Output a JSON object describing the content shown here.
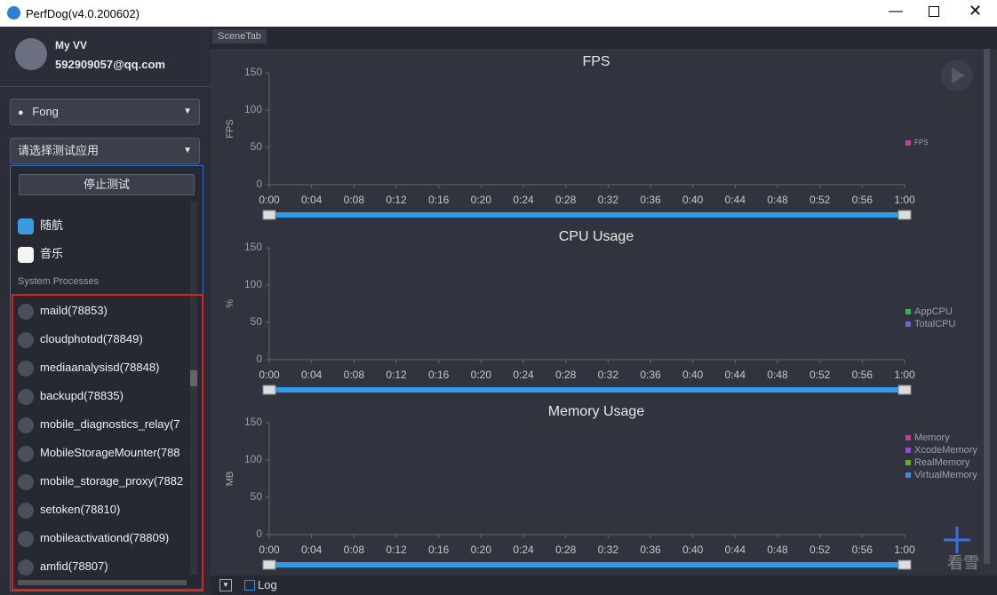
{
  "window": {
    "title": "PerfDog(v4.0.200602)"
  },
  "user": {
    "name": "My VV",
    "email": "592909057@qq.com"
  },
  "device": {
    "name": "Fong"
  },
  "app_select": {
    "placeholder": "请选择测试应用",
    "stop_button": "停止测试",
    "apps": [
      "随航",
      "音乐"
    ],
    "section": "System Processes",
    "processes": [
      "maild(78853)",
      "cloudphotod(78849)",
      "mediaanalysisd(78848)",
      "backupd(78835)",
      "mobile_diagnostics_relay(7",
      "MobileStorageMounter(788",
      "mobile_storage_proxy(7882",
      "setoken(78810)",
      "mobileactivationd(78809)",
      "amfid(78807)"
    ]
  },
  "tab": "SceneTab",
  "log": "Log",
  "watermark": "看雪",
  "chart_data": [
    {
      "type": "line",
      "title": "FPS",
      "ylabel": "FPS",
      "xlim": [
        0,
        60
      ],
      "xticks": [
        {
          "value": 0,
          "label": "0:00"
        },
        {
          "value": 4,
          "label": "0:04"
        },
        {
          "value": 8,
          "label": "0:08"
        },
        {
          "value": 12,
          "label": "0:12"
        },
        {
          "value": 16,
          "label": "0:16"
        },
        {
          "value": 20,
          "label": "0:20"
        },
        {
          "value": 24,
          "label": "0:24"
        },
        {
          "value": 28,
          "label": "0:28"
        },
        {
          "value": 32,
          "label": "0:32"
        },
        {
          "value": 36,
          "label": "0:36"
        },
        {
          "value": 40,
          "label": "0:40"
        },
        {
          "value": 44,
          "label": "0:44"
        },
        {
          "value": 48,
          "label": "0:48"
        },
        {
          "value": 52,
          "label": "0:52"
        },
        {
          "value": 56,
          "label": "0:56"
        },
        {
          "value": 60,
          "label": "1:00"
        }
      ],
      "ylim": [
        0,
        150
      ],
      "yticks": [
        0,
        50,
        100,
        150
      ],
      "series": [
        {
          "name": "FPS",
          "color": "#c83aa0"
        }
      ]
    },
    {
      "type": "line",
      "title": "CPU Usage",
      "ylabel": "%",
      "xlim": [
        0,
        60
      ],
      "xticks": [
        {
          "value": 0,
          "label": "0:00"
        },
        {
          "value": 4,
          "label": "0:04"
        },
        {
          "value": 8,
          "label": "0:08"
        },
        {
          "value": 12,
          "label": "0:12"
        },
        {
          "value": 16,
          "label": "0:16"
        },
        {
          "value": 20,
          "label": "0:20"
        },
        {
          "value": 24,
          "label": "0:24"
        },
        {
          "value": 28,
          "label": "0:28"
        },
        {
          "value": 32,
          "label": "0:32"
        },
        {
          "value": 36,
          "label": "0:36"
        },
        {
          "value": 40,
          "label": "0:40"
        },
        {
          "value": 44,
          "label": "0:44"
        },
        {
          "value": 48,
          "label": "0:48"
        },
        {
          "value": 52,
          "label": "0:52"
        },
        {
          "value": 56,
          "label": "0:56"
        },
        {
          "value": 60,
          "label": "1:00"
        }
      ],
      "ylim": [
        0,
        150
      ],
      "yticks": [
        0,
        50,
        100,
        150
      ],
      "series": [
        {
          "name": "AppCPU",
          "color": "#3bb34a"
        },
        {
          "name": "TotalCPU",
          "color": "#6a6ad6"
        }
      ]
    },
    {
      "type": "line",
      "title": "Memory Usage",
      "ylabel": "MB",
      "xlim": [
        0,
        60
      ],
      "xticks": [
        {
          "value": 0,
          "label": "0:00"
        },
        {
          "value": 4,
          "label": "0:04"
        },
        {
          "value": 8,
          "label": "0:08"
        },
        {
          "value": 12,
          "label": "0:12"
        },
        {
          "value": 16,
          "label": "0:16"
        },
        {
          "value": 20,
          "label": "0:20"
        },
        {
          "value": 24,
          "label": "0:24"
        },
        {
          "value": 28,
          "label": "0:28"
        },
        {
          "value": 32,
          "label": "0:32"
        },
        {
          "value": 36,
          "label": "0:36"
        },
        {
          "value": 40,
          "label": "0:40"
        },
        {
          "value": 44,
          "label": "0:44"
        },
        {
          "value": 48,
          "label": "0:48"
        },
        {
          "value": 52,
          "label": "0:52"
        },
        {
          "value": 56,
          "label": "0:56"
        },
        {
          "value": 60,
          "label": "1:00"
        }
      ],
      "ylim": [
        0,
        150
      ],
      "yticks": [
        0,
        50,
        100,
        150
      ],
      "series": [
        {
          "name": "Memory",
          "color": "#c83aa0"
        },
        {
          "name": "XcodeMemory",
          "color": "#8d4fd8"
        },
        {
          "name": "RealMemory",
          "color": "#6aaa1e"
        },
        {
          "name": "VirtualMemory",
          "color": "#3a8de0"
        }
      ]
    }
  ]
}
